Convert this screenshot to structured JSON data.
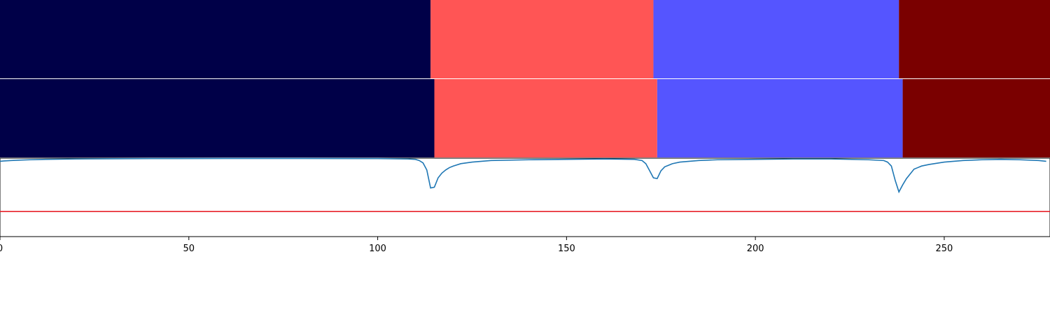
{
  "chart_data": {
    "type": "segmentation-plot",
    "x_range": [
      0,
      278
    ],
    "ticks": [
      0,
      50,
      100,
      150,
      200,
      250
    ],
    "tick_labels": [
      "0",
      "50",
      "100",
      "150",
      "200",
      "250"
    ],
    "segment_rows": [
      {
        "segments": [
          {
            "start": 0,
            "end": 114,
            "color": "#000048"
          },
          {
            "start": 114,
            "end": 173,
            "color": "#ff5555"
          },
          {
            "start": 173,
            "end": 238,
            "color": "#5555ff"
          },
          {
            "start": 238,
            "end": 278,
            "color": "#7a0000"
          }
        ]
      },
      {
        "segments": [
          {
            "start": 0,
            "end": 115,
            "color": "#000048"
          },
          {
            "start": 115,
            "end": 174,
            "color": "#ff5555"
          },
          {
            "start": 174,
            "end": 239,
            "color": "#5555ff"
          },
          {
            "start": 239,
            "end": 278,
            "color": "#7a0000"
          }
        ]
      }
    ],
    "line_panel": {
      "ylim": [
        0.0,
        1.0
      ],
      "threshold": 0.32,
      "threshold_color": "#e8222a",
      "series_color": "#1f77b4",
      "series": {
        "x": [
          0,
          1,
          3,
          5,
          8,
          12,
          20,
          30,
          40,
          60,
          80,
          100,
          108,
          110,
          111,
          112,
          113,
          114,
          115,
          116,
          117,
          118,
          119,
          120,
          122,
          125,
          130,
          140,
          150,
          160,
          168,
          170,
          171,
          172,
          173,
          174,
          175,
          176,
          177,
          178,
          180,
          185,
          190,
          200,
          210,
          220,
          230,
          234,
          235,
          236,
          237,
          238,
          239,
          240,
          241,
          242,
          243,
          244,
          246,
          250,
          255,
          260,
          265,
          270,
          275,
          277
        ],
        "y": [
          0.96,
          0.965,
          0.97,
          0.975,
          0.98,
          0.985,
          0.99,
          0.993,
          0.995,
          0.996,
          0.996,
          0.995,
          0.99,
          0.985,
          0.97,
          0.94,
          0.85,
          0.62,
          0.63,
          0.75,
          0.81,
          0.85,
          0.88,
          0.9,
          0.93,
          0.95,
          0.97,
          0.98,
          0.985,
          0.99,
          0.985,
          0.97,
          0.93,
          0.84,
          0.75,
          0.74,
          0.84,
          0.89,
          0.91,
          0.93,
          0.95,
          0.97,
          0.98,
          0.985,
          0.99,
          0.99,
          0.98,
          0.97,
          0.95,
          0.9,
          0.72,
          0.57,
          0.66,
          0.74,
          0.8,
          0.86,
          0.88,
          0.9,
          0.92,
          0.95,
          0.97,
          0.98,
          0.985,
          0.98,
          0.97,
          0.96
        ]
      }
    }
  }
}
